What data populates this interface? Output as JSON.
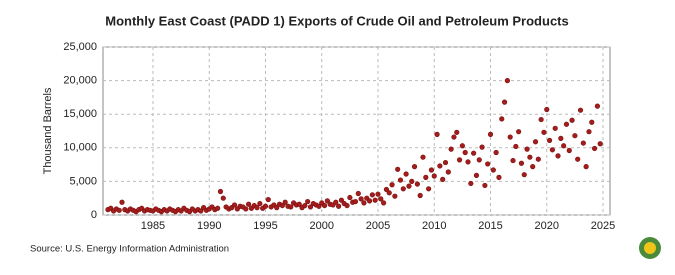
{
  "chart_data": {
    "type": "scatter",
    "title": "Monthly East Coast (PADD 1) Exports of Crude Oil and Petroleum Products",
    "y_label": "Thousand Barrels",
    "source": "Source: U.S. Energy Information Administration",
    "color": "#a31d1d",
    "grid": true,
    "xlim": [
      1980.56,
      2025.62
    ],
    "ylim": [
      0,
      25000
    ],
    "xticks": [
      1985,
      1990,
      1995,
      2000,
      2005,
      2010,
      2015,
      2020,
      2025
    ],
    "yticks": [
      0,
      {
        "value": 5000,
        "label": "5,000"
      },
      {
        "value": 10000,
        "label": "10,000"
      },
      {
        "value": 15000,
        "label": "15,000"
      },
      {
        "value": 20000,
        "label": "20,000"
      },
      {
        "value": 25000,
        "label": "25,000"
      }
    ],
    "x": [
      1981,
      1981.25,
      1981.5,
      1981.75,
      1982,
      1982.25,
      1982.5,
      1982.75,
      1983,
      1983.25,
      1983.5,
      1983.75,
      1984,
      1984.25,
      1984.5,
      1984.75,
      1985,
      1985.25,
      1985.5,
      1985.75,
      1986,
      1986.25,
      1986.5,
      1986.75,
      1987,
      1987.25,
      1987.5,
      1987.75,
      1988,
      1988.25,
      1988.5,
      1988.75,
      1989,
      1989.25,
      1989.5,
      1989.75,
      1990,
      1990.25,
      1990.5,
      1990.75,
      1991,
      1991.25,
      1991.5,
      1991.75,
      1992,
      1992.25,
      1992.5,
      1992.75,
      1993,
      1993.25,
      1993.5,
      1993.75,
      1994,
      1994.25,
      1994.5,
      1994.75,
      1995,
      1995.25,
      1995.5,
      1995.75,
      1996,
      1996.25,
      1996.5,
      1996.75,
      1997,
      1997.25,
      1997.5,
      1997.75,
      1998,
      1998.25,
      1998.5,
      1998.75,
      1999,
      1999.25,
      1999.5,
      1999.75,
      2000,
      2000.25,
      2000.5,
      2000.75,
      2001,
      2001.25,
      2001.5,
      2001.75,
      2002,
      2002.25,
      2002.5,
      2002.75,
      2003,
      2003.25,
      2003.5,
      2003.75,
      2004,
      2004.25,
      2004.5,
      2004.75,
      2005,
      2005.25,
      2005.5,
      2005.75,
      2006,
      2006.25,
      2006.5,
      2006.75,
      2007,
      2007.25,
      2007.5,
      2007.75,
      2008,
      2008.25,
      2008.5,
      2008.75,
      2009,
      2009.25,
      2009.5,
      2009.75,
      2010,
      2010.25,
      2010.5,
      2010.75,
      2011,
      2011.25,
      2011.5,
      2011.75,
      2012,
      2012.25,
      2012.5,
      2012.75,
      2013,
      2013.25,
      2013.5,
      2013.75,
      2014,
      2014.25,
      2014.5,
      2014.75,
      2015,
      2015.25,
      2015.5,
      2015.75,
      2016,
      2016.25,
      2016.5,
      2016.75,
      2017,
      2017.25,
      2017.5,
      2017.75,
      2018,
      2018.25,
      2018.5,
      2018.75,
      2019,
      2019.25,
      2019.5,
      2019.75,
      2020,
      2020.25,
      2020.5,
      2020.75,
      2021,
      2021.25,
      2021.5,
      2021.75,
      2022,
      2022.25,
      2022.5,
      2022.75,
      2023,
      2023.25,
      2023.5,
      2023.75,
      2024,
      2024.25,
      2024.5,
      2024.75
    ],
    "values": [
      800,
      1000,
      600,
      900,
      700,
      1900,
      800,
      600,
      900,
      700,
      500,
      800,
      1000,
      600,
      800,
      700,
      600,
      900,
      700,
      500,
      800,
      600,
      900,
      700,
      500,
      800,
      600,
      1000,
      700,
      500,
      900,
      600,
      800,
      600,
      1100,
      700,
      900,
      1200,
      800,
      1000,
      3500,
      2500,
      1200,
      900,
      1100,
      1500,
      900,
      1300,
      1200,
      900,
      1600,
      1000,
      1400,
      1100,
      1700,
      1000,
      1300,
      2300,
      1200,
      1500,
      1100,
      1600,
      1400,
      1900,
      1300,
      1200,
      1800,
      1500,
      1600,
      1100,
      1400,
      2000,
      1200,
      1700,
      1500,
      1300,
      1800,
      1400,
      2100,
      1600,
      1500,
      1900,
      1300,
      2200,
      1700,
      1400,
      2600,
      1900,
      2000,
      3200,
      2400,
      1800,
      2500,
      2100,
      3000,
      2200,
      3100,
      2400,
      1800,
      3800,
      3300,
      4500,
      2800,
      6800,
      5200,
      3900,
      6100,
      4300,
      5000,
      7200,
      4600,
      2900,
      8600,
      5600,
      3900,
      6700,
      5800,
      12000,
      7300,
      5300,
      7800,
      6400,
      9800,
      11600,
      12300,
      8200,
      10300,
      9300,
      7900,
      4700,
      9200,
      5900,
      8200,
      10100,
      4400,
      7600,
      12000,
      6700,
      9300,
      5600,
      14300,
      16800,
      20000,
      11600,
      8100,
      10200,
      12400,
      7700,
      6000,
      9800,
      8600,
      7200,
      10900,
      8300,
      14200,
      12300,
      15700,
      11100,
      9700,
      12900,
      8800,
      11400,
      10300,
      13500,
      9600,
      14100,
      11800,
      8300,
      15600,
      10700,
      7200,
      12400,
      13800,
      9900,
      16200,
      10600
    ]
  }
}
